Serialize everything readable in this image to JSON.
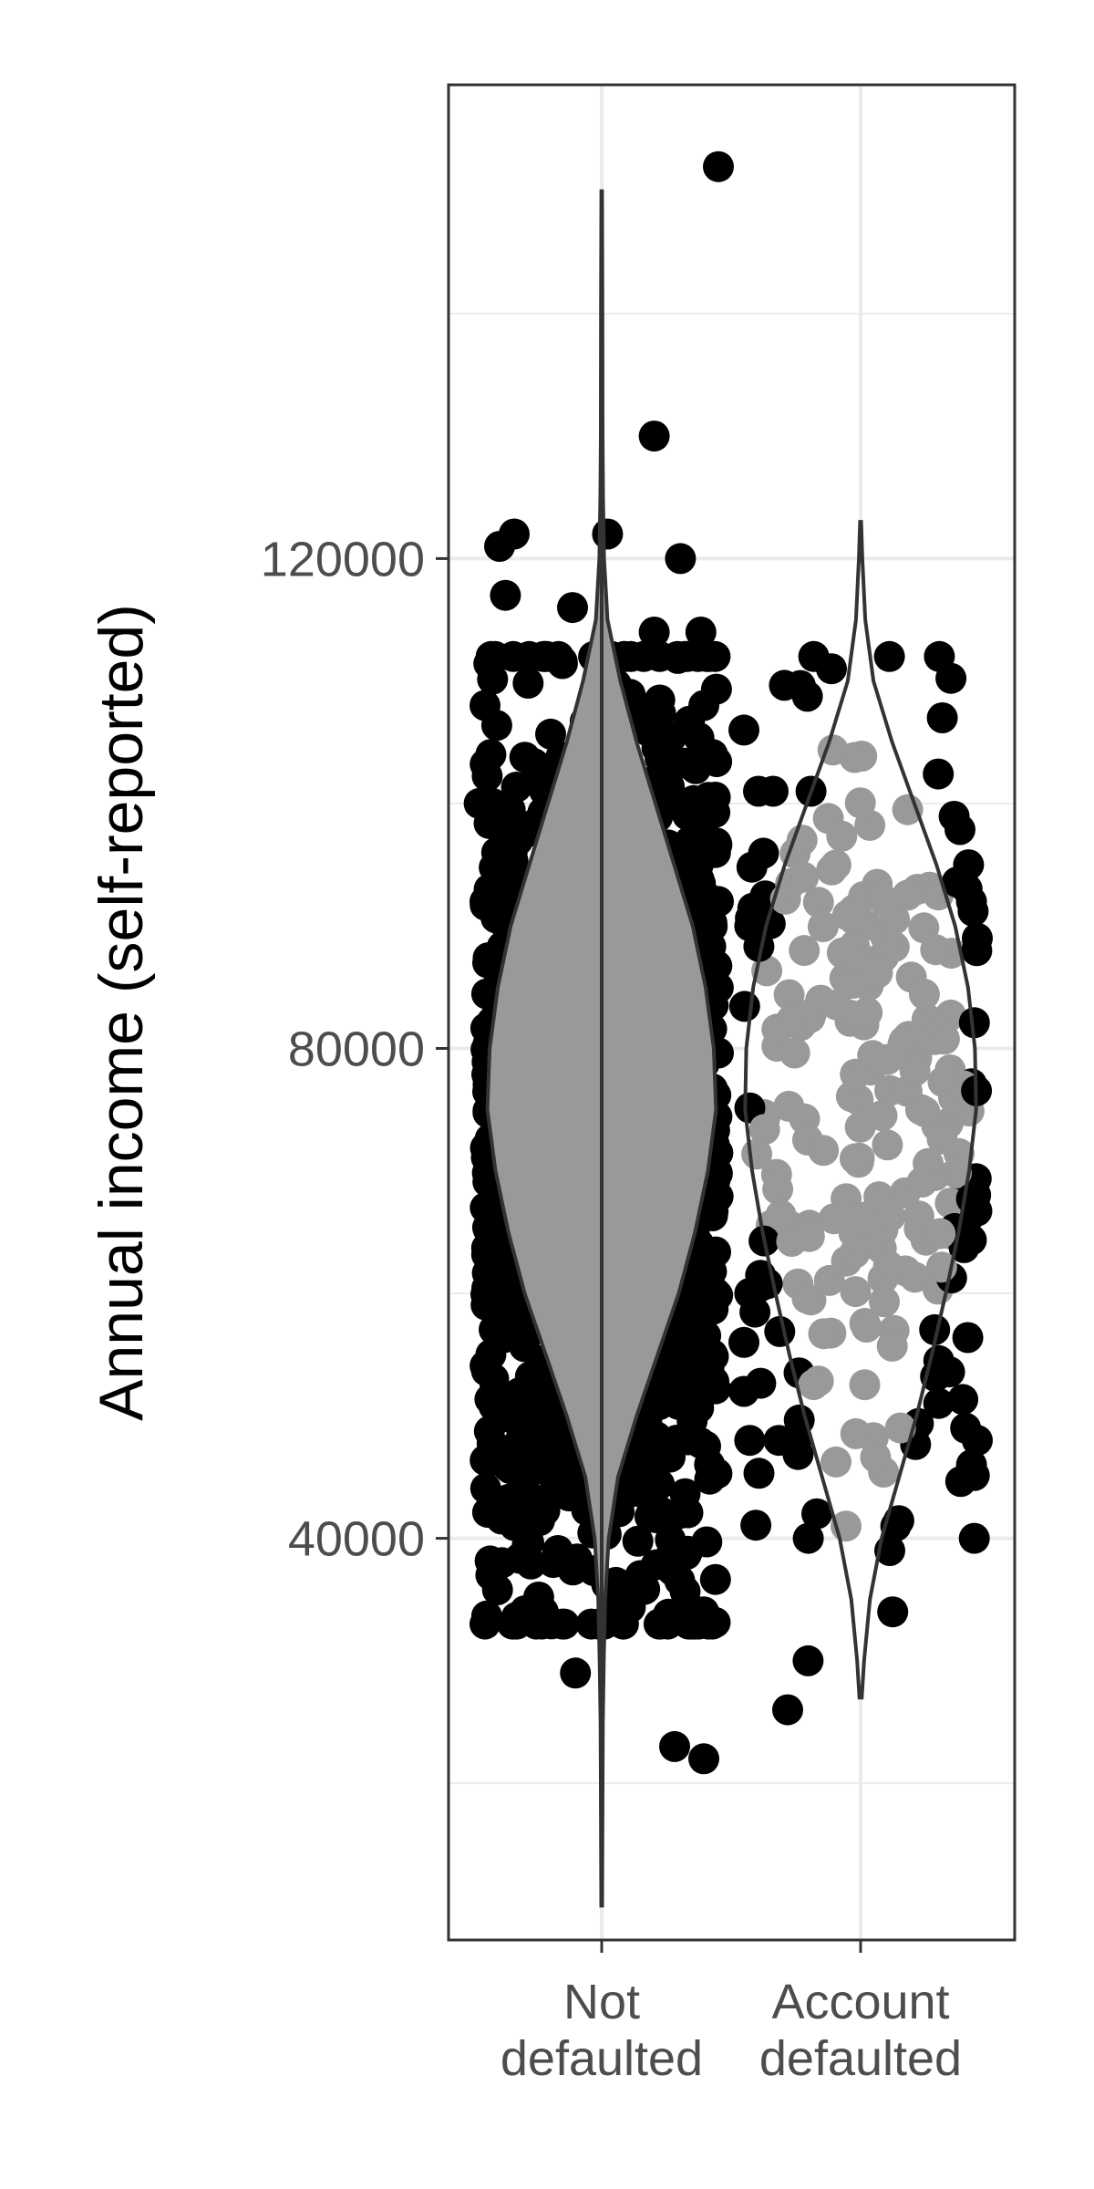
{
  "chart_data": {
    "type": "violin",
    "title": "",
    "xlabel": "",
    "ylabel": "Annual income (self-reported)",
    "ylim": [
      0,
      157000
    ],
    "y_ticks": [
      40000,
      80000,
      120000
    ],
    "y_tick_labels": [
      "40000",
      "80000",
      "120000"
    ],
    "grid": true,
    "legend": "none",
    "categories": [
      {
        "label_lines": [
          "Not",
          "defaulted"
        ]
      },
      {
        "label_lines": [
          "Account",
          "defaulted"
        ]
      }
    ],
    "groups": [
      {
        "category": "Not defaulted",
        "violin_fill": "#999999",
        "violin_stroke": "#333333",
        "point_color": "#000000",
        "point_count": 1400,
        "jitter_core_range": [
          33000,
          112000
        ],
        "violin_density": [
          [
            10000,
            0.004
          ],
          [
            20000,
            0.008
          ],
          [
            25000,
            0.01
          ],
          [
            30000,
            0.018
          ],
          [
            35000,
            0.03
          ],
          [
            40000,
            0.06
          ],
          [
            45000,
            0.14
          ],
          [
            50000,
            0.3
          ],
          [
            55000,
            0.48
          ],
          [
            60000,
            0.66
          ],
          [
            65000,
            0.8
          ],
          [
            70000,
            0.91
          ],
          [
            75000,
            0.98
          ],
          [
            80000,
            0.96
          ],
          [
            85000,
            0.89
          ],
          [
            90000,
            0.78
          ],
          [
            95000,
            0.62
          ],
          [
            100000,
            0.46
          ],
          [
            105000,
            0.3
          ],
          [
            110000,
            0.16
          ],
          [
            115000,
            0.05
          ],
          [
            120000,
            0.02
          ],
          [
            125000,
            0.012
          ],
          [
            130000,
            0.008
          ],
          [
            140000,
            0.006
          ],
          [
            150000,
            0.003
          ]
        ],
        "outliers": [
          [
            -0.4,
            108000
          ],
          [
            -0.38,
            104000
          ],
          [
            -0.42,
            100000
          ],
          [
            -0.36,
            96000
          ],
          [
            0.38,
            104000
          ],
          [
            0.36,
            100000
          ],
          [
            0.39,
            96000
          ],
          [
            0.35,
            108000
          ],
          [
            0.4,
            92000
          ],
          [
            -0.4,
            92000
          ],
          [
            -0.38,
            55000
          ],
          [
            0.38,
            55000
          ],
          [
            -0.35,
            121000
          ],
          [
            -0.3,
            122000
          ],
          [
            -0.33,
            117000
          ],
          [
            -0.1,
            116000
          ],
          [
            0.02,
            122000
          ],
          [
            0.18,
            114000
          ],
          [
            0.27,
            120000
          ],
          [
            0.34,
            114000
          ],
          [
            0.18,
            130000
          ],
          [
            0.4,
            152000
          ],
          [
            -0.38,
            37000
          ],
          [
            -0.4,
            33000
          ],
          [
            -0.2,
            34000
          ],
          [
            -0.09,
            29000
          ],
          [
            0.1,
            35000
          ],
          [
            0.35,
            34000
          ],
          [
            0.38,
            33000
          ],
          [
            0.25,
            23000
          ],
          [
            0.35,
            22000
          ],
          [
            -0.15,
            39000
          ]
        ]
      },
      {
        "category": "Account defaulted",
        "violin_fill": "#ffffff",
        "violin_stroke": "#333333",
        "point_color_outside": "#000000",
        "point_color_inside": "#999999",
        "point_count": 230,
        "jitter_core_range": [
          40000,
          112000
        ],
        "violin_density": [
          [
            27000,
            0.01
          ],
          [
            30000,
            0.03
          ],
          [
            35000,
            0.08
          ],
          [
            40000,
            0.18
          ],
          [
            45000,
            0.33
          ],
          [
            50000,
            0.48
          ],
          [
            55000,
            0.61
          ],
          [
            60000,
            0.73
          ],
          [
            65000,
            0.84
          ],
          [
            70000,
            0.93
          ],
          [
            75000,
            0.99
          ],
          [
            80000,
            0.98
          ],
          [
            85000,
            0.92
          ],
          [
            90000,
            0.81
          ],
          [
            95000,
            0.65
          ],
          [
            100000,
            0.46
          ],
          [
            105000,
            0.27
          ],
          [
            110000,
            0.11
          ],
          [
            115000,
            0.04
          ],
          [
            120000,
            0.015
          ],
          [
            123000,
            0.005
          ]
        ],
        "outliers": [
          [
            -0.4,
            106000
          ],
          [
            -0.35,
            101000
          ],
          [
            -0.3,
            101000
          ],
          [
            -0.17,
            101000
          ],
          [
            -0.1,
            111000
          ],
          [
            0.27,
            112000
          ],
          [
            0.28,
            107000
          ],
          [
            0.37,
            95000
          ],
          [
            0.38,
            92000
          ],
          [
            0.4,
            89000
          ],
          [
            -0.38,
            90000
          ],
          [
            -0.38,
            60000
          ],
          [
            -0.4,
            56000
          ],
          [
            -0.4,
            52000
          ],
          [
            -0.38,
            48000
          ],
          [
            -0.28,
            48000
          ],
          [
            -0.22,
            48000
          ],
          [
            0.36,
            49000
          ],
          [
            0.4,
            48000
          ],
          [
            0.38,
            46000
          ],
          [
            -0.15,
            42000
          ],
          [
            0.1,
            39000
          ],
          [
            -0.25,
            26000
          ],
          [
            -0.18,
            30000
          ],
          [
            0.11,
            34000
          ],
          [
            -0.05,
            41000
          ]
        ]
      }
    ]
  }
}
